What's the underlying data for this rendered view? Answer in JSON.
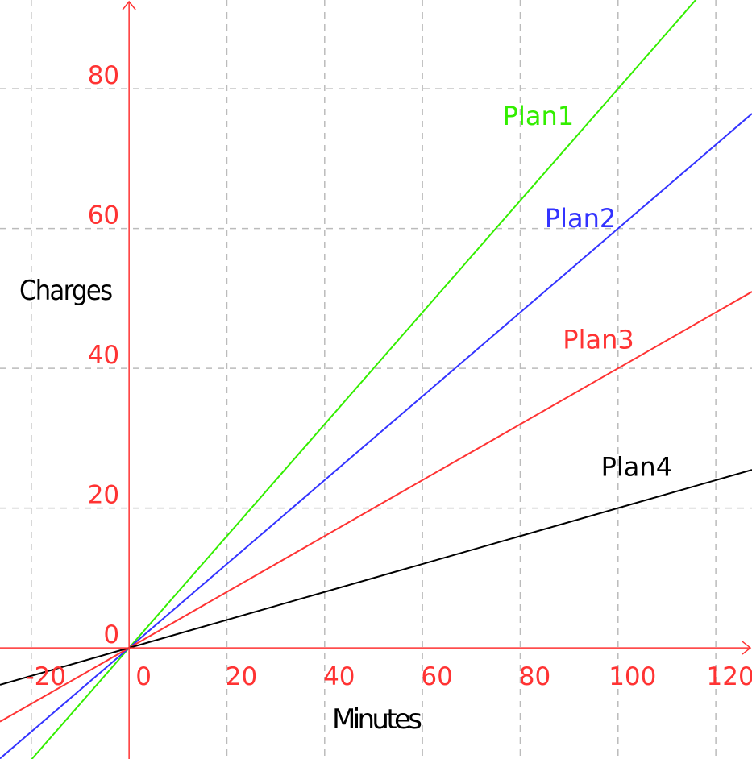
{
  "chart_data": {
    "type": "line",
    "title": "",
    "xlabel": "Minutes",
    "ylabel": "Charges",
    "xlim": [
      -26.4,
      127.4
    ],
    "ylim": [
      -15.9,
      92.7
    ],
    "grid": true,
    "x_ticks": [
      -20,
      0,
      20,
      40,
      60,
      80,
      100,
      120
    ],
    "x_tick_labels": [
      "-20",
      "0",
      "20",
      "40",
      "60",
      "80",
      "100",
      "120"
    ],
    "y_ticks": [
      0,
      20,
      40,
      60,
      80
    ],
    "y_tick_labels": [
      "0",
      "20",
      "40",
      "60",
      "80"
    ],
    "axis_color": "#ff3333",
    "grid_color": "#bbbbbb",
    "series": [
      {
        "name": "Plan1",
        "slope": 0.8,
        "x": [
          -26.4,
          127.4
        ],
        "y": [
          -21.12,
          101.92
        ],
        "color": "#33ee00"
      },
      {
        "name": "Plan2",
        "slope": 0.6,
        "x": [
          -26.4,
          127.4
        ],
        "y": [
          -15.84,
          76.44
        ],
        "color": "#3333ff"
      },
      {
        "name": "Plan3",
        "slope": 0.4,
        "x": [
          -26.4,
          127.4
        ],
        "y": [
          -10.56,
          50.96
        ],
        "color": "#ff3333"
      },
      {
        "name": "Plan4",
        "slope": 0.2,
        "x": [
          -26.4,
          127.4
        ],
        "y": [
          -5.28,
          25.48
        ],
        "color": "#000000"
      }
    ]
  }
}
